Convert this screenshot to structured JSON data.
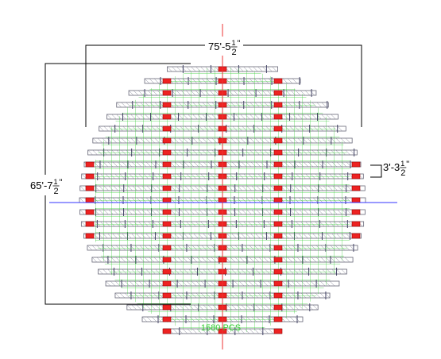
{
  "dimensions": [
    {
      "whole": "75'-5",
      "num": "1",
      "den": "2",
      "unit": "\""
    },
    {
      "whole": "65'-7",
      "num": "1",
      "den": "2",
      "unit": "\""
    },
    {
      "whole": "3'-3",
      "num": "1",
      "den": "2",
      "unit": "\""
    }
  ],
  "count_label": "1580 PCS"
}
